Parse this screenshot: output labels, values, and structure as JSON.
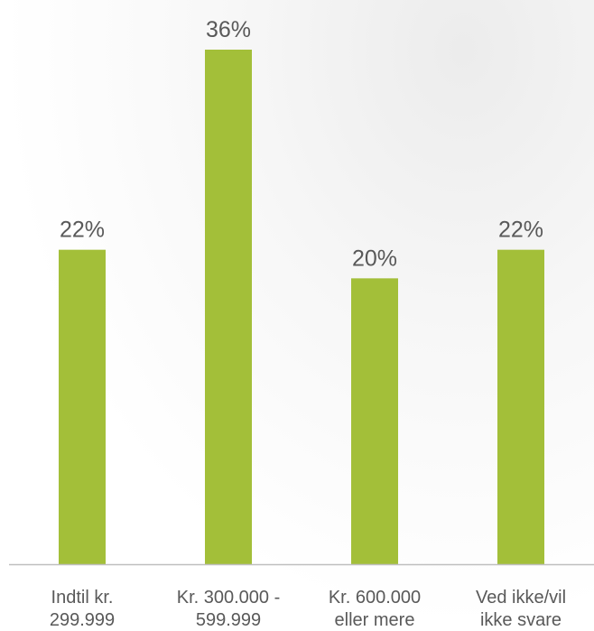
{
  "chart_data": {
    "type": "bar",
    "categories": [
      [
        "Indtil kr.",
        "299.999"
      ],
      [
        "Kr. 300.000 -",
        "599.999"
      ],
      [
        "Kr. 600.000",
        "eller mere"
      ],
      [
        "Ved ikke/vil",
        "ikke svare"
      ]
    ],
    "values": [
      22,
      36,
      20,
      22
    ],
    "data_labels": [
      "22%",
      "36%",
      "20%",
      "22%"
    ],
    "title": "",
    "xlabel": "",
    "ylabel": "",
    "ylim": [
      0,
      36
    ],
    "grid": false,
    "legend": "none",
    "bar_color": "#a3bf39",
    "axis_color": "#bfbfbf",
    "text_color": "#595959"
  }
}
